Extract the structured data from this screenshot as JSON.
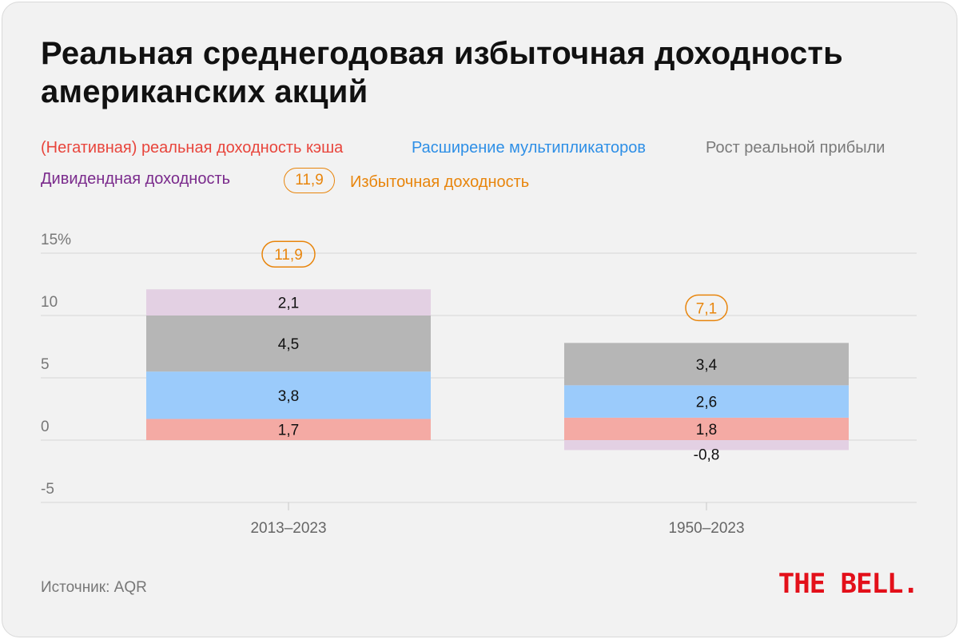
{
  "title": "Реальная среднегодовая избыточная доходность американских акций",
  "legend": [
    {
      "label": "(Негативная) реальная доходность кэша",
      "color": "#e8453c"
    },
    {
      "label": "Расширение мультипликаторов",
      "color": "#2e8fe6"
    },
    {
      "label": "Рост реальной прибыли",
      "color": "#7a7a7a"
    },
    {
      "label": "Дивидендная доходность",
      "color": "#7a2a8c"
    },
    {
      "label": "Избыточная доходность",
      "color": "#e8850c",
      "badge": "11,9"
    }
  ],
  "chart_data": {
    "type": "bar",
    "stacked": true,
    "categories": [
      "2013–2023",
      "1950–2023"
    ],
    "ylim": [
      -5,
      15
    ],
    "ticks": [
      {
        "value": 15,
        "label": "15%"
      },
      {
        "value": 10,
        "label": "10"
      },
      {
        "value": 5,
        "label": "5"
      },
      {
        "value": 0,
        "label": "0"
      },
      {
        "value": -5,
        "label": "-5"
      }
    ],
    "series": [
      {
        "name": "(Негативная) реальная доходность кэша",
        "color": "#f4aaa4",
        "values": [
          1.7,
          1.8
        ],
        "labels": [
          "1,7",
          "1,8"
        ]
      },
      {
        "name": "Расширение мультипликаторов",
        "color": "#9bcbfb",
        "values": [
          3.8,
          2.6
        ],
        "labels": [
          "3,8",
          "2,6"
        ]
      },
      {
        "name": "Рост реальной прибыли",
        "color": "#b6b6b6",
        "values": [
          4.5,
          3.4
        ],
        "labels": [
          "4,5",
          "3,4"
        ]
      },
      {
        "name": "Дивидендная доходность",
        "color": "#e3d0e3",
        "values": [
          2.1,
          -0.8
        ],
        "labels": [
          "2,1",
          "-0,8"
        ]
      }
    ],
    "totals": [
      11.9,
      7.1
    ],
    "total_labels": [
      "11,9",
      "7,1"
    ],
    "total_color": "#e8850c"
  },
  "source": "Источник: AQR",
  "logo": "THE BELL."
}
